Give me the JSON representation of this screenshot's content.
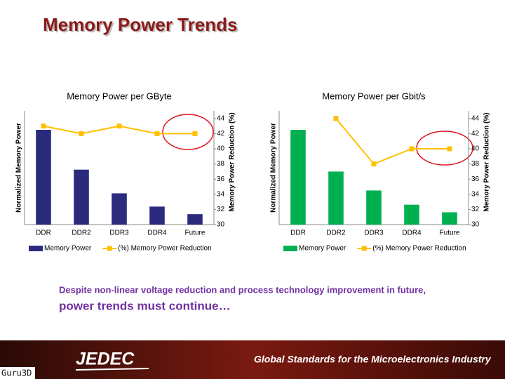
{
  "header": {
    "title": "Memory Power Trends"
  },
  "chart_data": [
    {
      "type": "bar-line",
      "title": "Memory Power per GByte",
      "categories": [
        "DDR",
        "DDR2",
        "DDR3",
        "DDR4",
        "Future"
      ],
      "ylabel": "Normalized Memory Power",
      "y2label": "Memory  Power Reduction (%)",
      "ylim": [
        0,
        1.2
      ],
      "y2lim": [
        30,
        45
      ],
      "y2ticks": [
        30,
        32,
        34,
        36,
        38,
        40,
        42,
        44
      ],
      "legend": "bottom",
      "series": [
        {
          "name": "Memory Power",
          "type": "bar",
          "color": "#2b2b7e",
          "values": [
            1.0,
            0.58,
            0.33,
            0.19,
            0.11
          ]
        },
        {
          "name": "(%) Memory Power Reduction",
          "type": "line",
          "axis": "y2",
          "color": "#ffc000",
          "values": [
            43,
            42,
            43,
            42,
            42
          ]
        }
      ]
    },
    {
      "type": "bar-line",
      "title": "Memory Power per Gbit/s",
      "categories": [
        "DDR",
        "DDR2",
        "DDR3",
        "DDR4",
        "Future"
      ],
      "ylabel": "Normalized Memory Power",
      "y2label": "Memory Power Reduction (%)",
      "ylim": [
        0,
        1.2
      ],
      "y2lim": [
        30,
        45
      ],
      "y2ticks": [
        30,
        32,
        34,
        36,
        38,
        40,
        42,
        44
      ],
      "legend": "bottom",
      "series": [
        {
          "name": "Memory Power",
          "type": "bar",
          "color": "#00b050",
          "values": [
            1.0,
            0.56,
            0.36,
            0.21,
            0.13
          ]
        },
        {
          "name": "(%) Memory Power Reduction",
          "type": "line",
          "axis": "y2",
          "color": "#ffc000",
          "values": [
            null,
            44,
            38,
            40,
            40
          ]
        }
      ]
    }
  ],
  "caption": {
    "line1": "Despite non-linear voltage reduction and process technology improvement in future,",
    "line2": "power trends must continue…"
  },
  "footer": {
    "logo": "JEDEC",
    "tagline": "Global Standards for the Microelectronics Industry",
    "watermark": "Guru3D"
  }
}
